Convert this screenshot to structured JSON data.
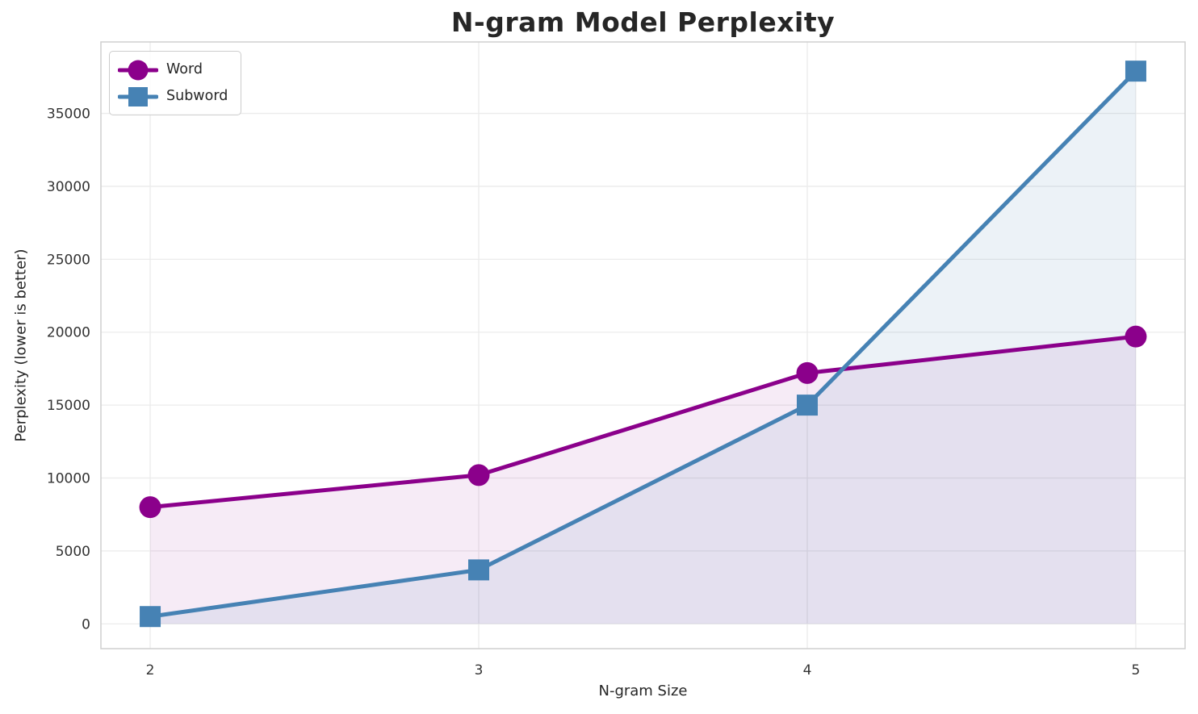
{
  "chart_data": {
    "type": "line",
    "title": "N-gram Model Perplexity",
    "xlabel": "N-gram Size",
    "ylabel": "Perplexity (lower is better)",
    "x": [
      2,
      3,
      4,
      5
    ],
    "xtick_labels": [
      "2",
      "3",
      "4",
      "5"
    ],
    "yticks": [
      0,
      5000,
      10000,
      15000,
      20000,
      25000,
      30000,
      35000
    ],
    "ytick_labels": [
      "0",
      "5000",
      "10000",
      "15000",
      "20000",
      "25000",
      "30000",
      "35000"
    ],
    "xlim": [
      1.85,
      5.15
    ],
    "ylim": [
      -1700,
      39900
    ],
    "grid": true,
    "legend_position": "upper left",
    "series": [
      {
        "name": "Word",
        "marker": "circle",
        "color": "#8B008B",
        "fill_alpha": 0.08,
        "values": [
          8000,
          10200,
          17200,
          19700
        ]
      },
      {
        "name": "Subword",
        "marker": "square",
        "color": "#4682B4",
        "fill_alpha": 0.1,
        "values": [
          500,
          3700,
          15000,
          37900
        ]
      }
    ],
    "fill_to_value": 0,
    "colors": {
      "background": "#ffffff",
      "grid": "#ebebeb",
      "spine": "#cfcfcf",
      "text": "#262626",
      "tick_text": "#333333",
      "legend_border": "#cccccc"
    }
  }
}
